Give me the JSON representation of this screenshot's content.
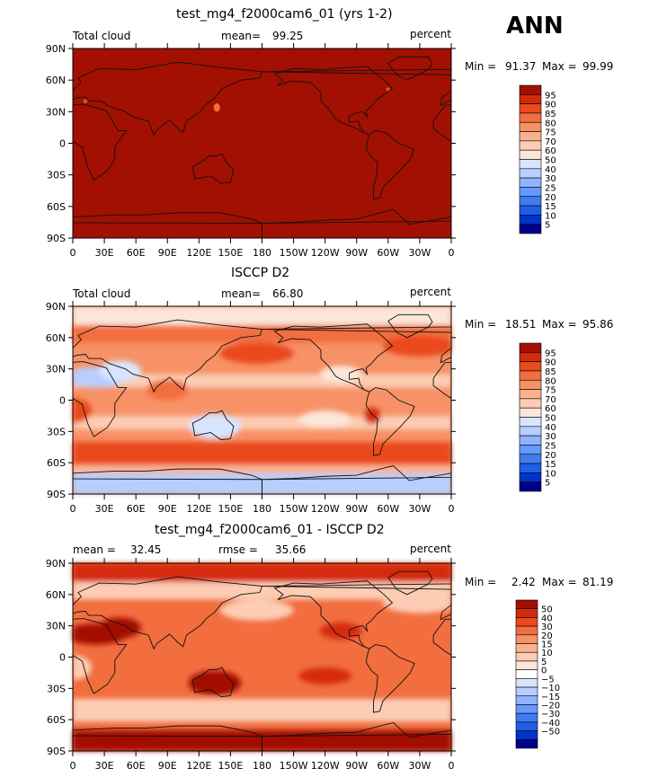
{
  "season": "ANN",
  "colors": {
    "absolute": [
      "#00008b",
      "#0033cc",
      "#1f5fe8",
      "#3f7cf0",
      "#6699ff",
      "#8fb3ff",
      "#b7ceff",
      "#d9e5ff",
      "#fbe6d9",
      "#fcccb4",
      "#fbb18e",
      "#f79266",
      "#f26e3f",
      "#ea4a1c",
      "#d42a0a",
      "#a21002"
    ],
    "difference": [
      "#00008b",
      "#0033cc",
      "#1f5fe8",
      "#3f7cf0",
      "#6699ff",
      "#8fb3ff",
      "#b7ceff",
      "#d9e5ff",
      "#ffffff",
      "#fbe6d9",
      "#fcccb4",
      "#fbb18e",
      "#f79266",
      "#f26e3f",
      "#ea4a1c",
      "#d42a0a",
      "#a21002"
    ]
  },
  "lat_ticks": [
    "90N",
    "60N",
    "30N",
    "0",
    "30S",
    "60S",
    "90S"
  ],
  "lon_ticks": [
    "0",
    "30E",
    "60E",
    "90E",
    "120E",
    "150E",
    "180",
    "150W",
    "120W",
    "90W",
    "60W",
    "30W",
    "0"
  ],
  "chart_data": [
    {
      "type": "heatmap",
      "title": "test_mg4_f2000cam6_01 (yrs 1-2)",
      "left_label": "Total cloud",
      "center_label": "mean=",
      "center_value": "99.25",
      "right_label": "percent",
      "min_label": "Min =",
      "min_value": "91.37",
      "max_label": "Max =",
      "max_value": "99.99",
      "levels": [
        "95",
        "90",
        "85",
        "80",
        "75",
        "70",
        "60",
        "50",
        "40",
        "30",
        "25",
        "20",
        "15",
        "10",
        "5"
      ],
      "xlim": [
        0,
        360
      ],
      "ylim": [
        -90,
        90
      ]
    },
    {
      "type": "heatmap",
      "title": "ISCCP D2",
      "left_label": "Total cloud",
      "center_label": "mean=",
      "center_value": "66.80",
      "right_label": "percent",
      "min_label": "Min =",
      "min_value": "18.51",
      "max_label": "Max =",
      "max_value": "95.86",
      "levels": [
        "95",
        "90",
        "85",
        "80",
        "75",
        "70",
        "60",
        "50",
        "40",
        "30",
        "25",
        "20",
        "15",
        "10",
        "5"
      ],
      "xlim": [
        0,
        360
      ],
      "ylim": [
        -90,
        90
      ]
    },
    {
      "type": "heatmap",
      "title": "test_mg4_f2000cam6_01 - ISCCP D2",
      "left_label": "mean =",
      "left_value": "32.45",
      "center_label": "rmse =",
      "center_value": "35.66",
      "right_label": "percent",
      "min_label": "Min =",
      "min_value": "2.42",
      "max_label": "Max =",
      "max_value": "81.19",
      "levels": [
        "50",
        "40",
        "30",
        "20",
        "15",
        "10",
        "5",
        "0",
        "−5",
        "−10",
        "−15",
        "−20",
        "−30",
        "−40",
        "−50"
      ],
      "xlim": [
        0,
        360
      ],
      "ylim": [
        -90,
        90
      ]
    }
  ]
}
